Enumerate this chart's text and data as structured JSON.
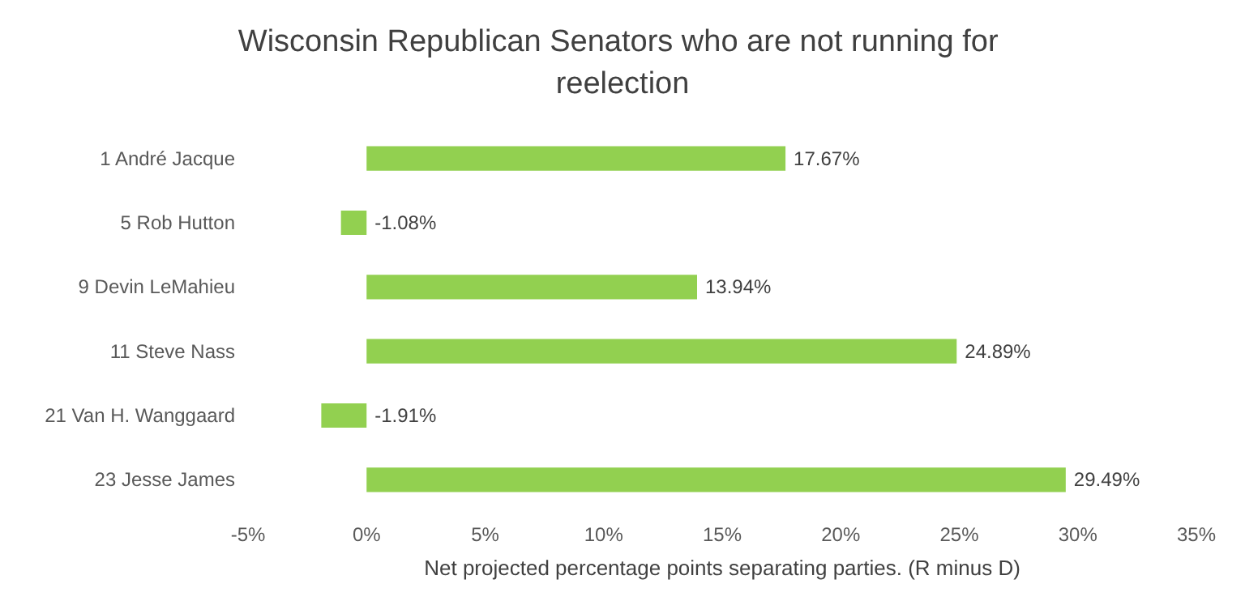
{
  "chart_data": {
    "type": "bar",
    "orientation": "horizontal",
    "title": "Wisconsin Republican Senators who are not running for reelection",
    "xlabel": "Net projected percentage points separating parties. (R minus D)",
    "categories": [
      "1 André Jacque",
      "5 Rob Hutton",
      "9 Devin LeMahieu",
      "11 Steve Nass",
      "21 Van H. Wanggaard",
      "23 Jesse James"
    ],
    "values": [
      17.67,
      -1.08,
      13.94,
      24.89,
      -1.91,
      29.49
    ],
    "value_labels": [
      "17.67%",
      "-1.08%",
      "13.94%",
      "24.89%",
      "-1.91%",
      "29.49%"
    ],
    "color": "#92d050",
    "xlim": [
      -5,
      35
    ],
    "xticks": [
      {
        "value": -5,
        "label": "-5%"
      },
      {
        "value": 0,
        "label": "0%"
      },
      {
        "value": 5,
        "label": "5%"
      },
      {
        "value": 10,
        "label": "10%"
      },
      {
        "value": 15,
        "label": "15%"
      },
      {
        "value": 20,
        "label": "20%"
      },
      {
        "value": 25,
        "label": "25%"
      },
      {
        "value": 30,
        "label": "30%"
      },
      {
        "value": 35,
        "label": "35%"
      }
    ],
    "grid": false
  }
}
